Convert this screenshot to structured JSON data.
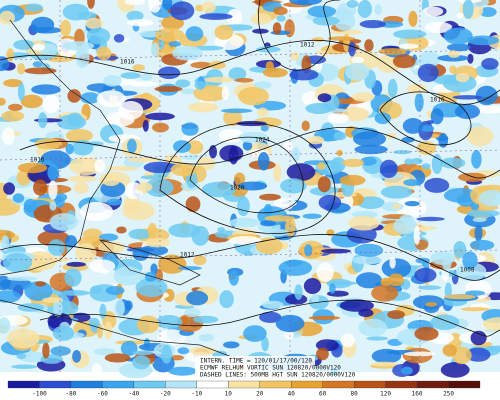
{
  "caption": {
    "lines": [
      "INTERN. TIME = 120/01/17/00/120",
      "ECMWF RELHUM VORTIC SUN 120820/0000V120",
      "DASHED LINES: 500MB HGT SUN 120820/0000V120"
    ]
  },
  "colorbar": {
    "labels": [
      -100,
      -80,
      -60,
      -40,
      -20,
      -10,
      10,
      20,
      40,
      60,
      80,
      120,
      160,
      250
    ]
  },
  "map": {
    "contour_labels": [
      "1016",
      "1020",
      "1024",
      "1012",
      "1016",
      "1012",
      "1008",
      "1016"
    ]
  }
}
